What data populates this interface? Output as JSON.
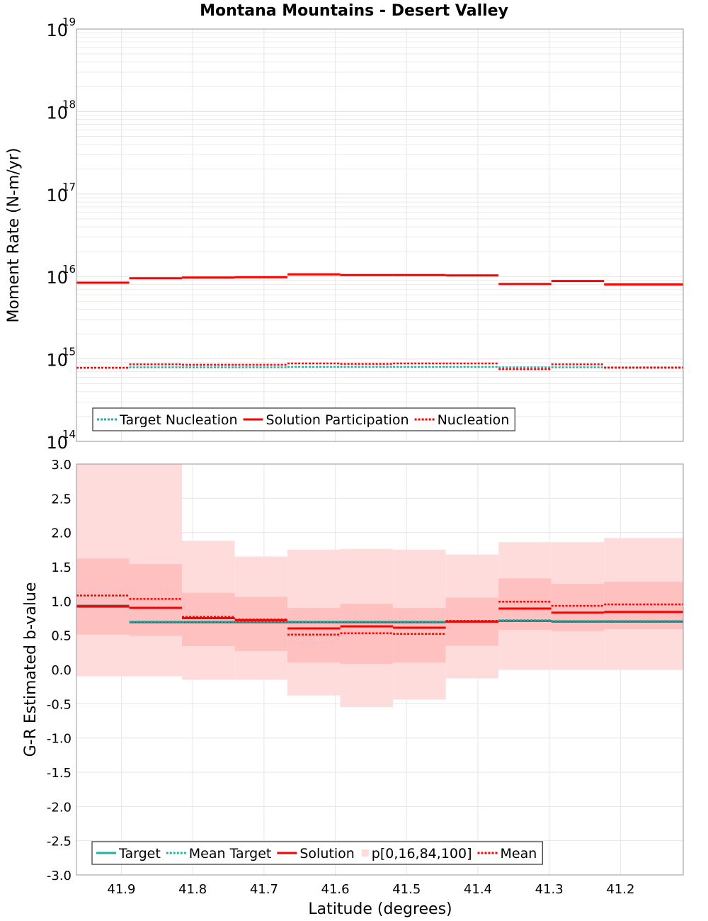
{
  "title": "Montana Mountains - Desert Valley",
  "xlabel": "Latitude (degrees)",
  "colors": {
    "target": "#20b2aa",
    "target_dark": "#2f6f6f",
    "solution": "#ff0000",
    "band_outer": "#ffdcdc",
    "band_inner": "#ffc0c0",
    "grid": "#e6e6e6"
  },
  "chart_data": [
    {
      "type": "line",
      "name": "moment-rate",
      "ylabel": "Moment Rate (N-m/yr)",
      "yscale": "log",
      "ylim": [
        100000000000000.0,
        1e+19
      ],
      "xlim": [
        41.963,
        41.112
      ],
      "x_reversed": true,
      "xticks": [
        "41.9",
        "41.8",
        "41.7",
        "41.6",
        "41.5",
        "41.4",
        "41.3",
        "41.2"
      ],
      "xtick_values": [
        41.9,
        41.8,
        41.7,
        41.6,
        41.5,
        41.4,
        41.3,
        41.2
      ],
      "yticks": [
        {
          "base": "10",
          "exp": "14",
          "value": 100000000000000.0
        },
        {
          "base": "10",
          "exp": "15",
          "value": 1000000000000000.0
        },
        {
          "base": "10",
          "exp": "16",
          "value": 1e+16
        },
        {
          "base": "10",
          "exp": "17",
          "value": 1e+17
        },
        {
          "base": "10",
          "exp": "18",
          "value": 1e+18
        },
        {
          "base": "10",
          "exp": "19",
          "value": 1e+19
        }
      ],
      "grid": true,
      "legend_position": "bottom-left",
      "legend": [
        "Target Nucleation",
        "Solution Participation",
        "Nucleation"
      ],
      "bin_edges": [
        41.963,
        41.889,
        41.815,
        41.741,
        41.667,
        41.593,
        41.519,
        41.445,
        41.371,
        41.297,
        41.223,
        41.112
      ],
      "series": [
        {
          "name": "Target Nucleation",
          "style": "dotted",
          "color": "#20b2aa",
          "values": [
            780000000000000.0,
            790000000000000.0,
            790000000000000.0,
            790000000000000.0,
            800000000000000.0,
            800000000000000.0,
            800000000000000.0,
            800000000000000.0,
            790000000000000.0,
            790000000000000.0,
            790000000000000.0
          ]
        },
        {
          "name": "Solution Participation",
          "style": "solid",
          "color": "#ff0000",
          "values": [
            8400000000000000.0,
            9500000000000000.0,
            9700000000000000.0,
            9800000000000000.0,
            1.06e+16,
            1.04e+16,
            1.04e+16,
            1.03e+16,
            8100000000000000.0,
            8800000000000000.0,
            8000000000000000.0
          ]
        },
        {
          "name": "Nucleation",
          "style": "dotted",
          "color": "#ff0000",
          "values": [
            780000000000000.0,
            860000000000000.0,
            850000000000000.0,
            850000000000000.0,
            880000000000000.0,
            870000000000000.0,
            880000000000000.0,
            880000000000000.0,
            750000000000000.0,
            860000000000000.0,
            780000000000000.0
          ]
        }
      ]
    },
    {
      "type": "line",
      "name": "b-value",
      "ylabel": "G-R Estimated b-value",
      "ylim": [
        -3.0,
        3.0
      ],
      "xlim": [
        41.963,
        41.112
      ],
      "x_reversed": true,
      "xticks": [
        "41.9",
        "41.8",
        "41.7",
        "41.6",
        "41.5",
        "41.4",
        "41.3",
        "41.2"
      ],
      "xtick_values": [
        41.9,
        41.8,
        41.7,
        41.6,
        41.5,
        41.4,
        41.3,
        41.2
      ],
      "yticks": [
        "3.0",
        "2.5",
        "2.0",
        "1.5",
        "1.0",
        "0.5",
        "0.0",
        "-0.5",
        "-1.0",
        "-1.5",
        "-2.0",
        "-2.5",
        "-3.0"
      ],
      "ytick_values": [
        3.0,
        2.5,
        2.0,
        1.5,
        1.0,
        0.5,
        0.0,
        -0.5,
        -1.0,
        -1.5,
        -2.0,
        -2.5,
        -3.0
      ],
      "grid": true,
      "legend_position": "bottom-left",
      "legend": [
        "Target",
        "Mean Target",
        "Solution",
        "p[0,16,84,100]",
        "Mean"
      ],
      "bin_edges": [
        41.963,
        41.889,
        41.815,
        41.741,
        41.667,
        41.593,
        41.519,
        41.445,
        41.371,
        41.297,
        41.223,
        41.112
      ],
      "bands": {
        "p0": [
          -0.1,
          -0.1,
          -0.15,
          -0.15,
          -0.38,
          -0.55,
          -0.44,
          -0.13,
          0.0,
          0.0,
          0.0
        ],
        "p16": [
          0.51,
          0.49,
          0.34,
          0.27,
          0.1,
          0.08,
          0.1,
          0.35,
          0.58,
          0.56,
          0.59
        ],
        "p84": [
          1.62,
          1.54,
          1.12,
          1.06,
          0.9,
          0.96,
          0.9,
          1.05,
          1.33,
          1.25,
          1.28
        ],
        "p100": [
          3.0,
          3.0,
          1.88,
          1.65,
          1.75,
          1.76,
          1.75,
          1.68,
          1.86,
          1.86,
          1.92
        ]
      },
      "series": [
        {
          "name": "Target",
          "style": "solid",
          "color": "#2f6f6f",
          "values": [
            0.93,
            0.69,
            0.69,
            0.69,
            0.69,
            0.69,
            0.69,
            0.7,
            0.71,
            0.7,
            0.7
          ]
        },
        {
          "name": "Mean Target",
          "style": "dotted",
          "color": "#20b2aa",
          "values": [
            0.92,
            0.7,
            0.7,
            0.7,
            0.7,
            0.7,
            0.7,
            0.71,
            0.72,
            0.71,
            0.71
          ]
        },
        {
          "name": "Solution",
          "style": "solid",
          "color": "#ff0000",
          "values": [
            0.92,
            0.9,
            0.75,
            0.72,
            0.6,
            0.63,
            0.61,
            0.7,
            0.89,
            0.83,
            0.84
          ]
        },
        {
          "name": "Mean",
          "style": "dotted",
          "color": "#ff0000",
          "values": [
            1.08,
            1.03,
            0.77,
            0.73,
            0.51,
            0.53,
            0.52,
            0.71,
            0.99,
            0.93,
            0.95
          ]
        }
      ]
    }
  ]
}
